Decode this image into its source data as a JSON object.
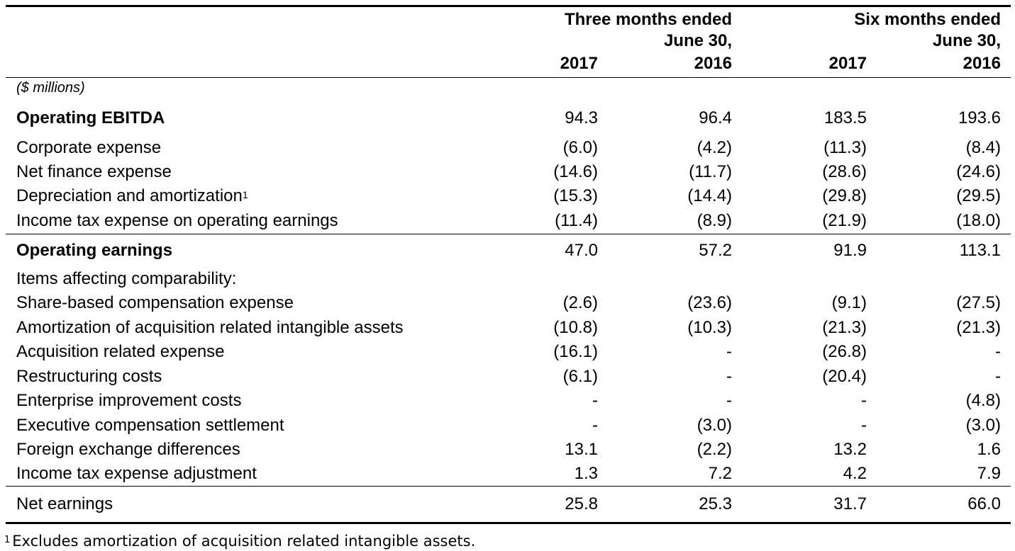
{
  "header": {
    "group1": [
      "Three months ended",
      "June 30,"
    ],
    "group2": [
      "Six months ended",
      "June 30,"
    ],
    "years": [
      "2017",
      "2016",
      "2017",
      "2016"
    ]
  },
  "units": "($ millions)",
  "rows": [
    {
      "label": "Operating EBITDA",
      "values": [
        "94.3",
        "96.4",
        "183.5",
        "193.6"
      ],
      "bold": true
    },
    {
      "label": "Corporate expense",
      "values": [
        "(6.0)",
        "(4.2)",
        "(11.3)",
        "(8.4)"
      ]
    },
    {
      "label": "Net finance expense",
      "values": [
        "(14.6)",
        "(11.7)",
        "(28.6)",
        "(24.6)"
      ]
    },
    {
      "label": "Depreciation and amortization",
      "footnote_marker": "1",
      "values": [
        "(15.3)",
        "(14.4)",
        "(29.8)",
        "(29.5)"
      ]
    },
    {
      "label": "Income tax expense on operating earnings",
      "values": [
        "(11.4)",
        "(8.9)",
        "(21.9)",
        "(18.0)"
      ]
    },
    {
      "label": "Operating earnings",
      "values": [
        "47.0",
        "57.2",
        "91.9",
        "113.1"
      ],
      "bold": true
    },
    {
      "label": "Items affecting comparability:",
      "values": [
        "",
        "",
        "",
        ""
      ]
    },
    {
      "label": "Share-based compensation expense",
      "values": [
        "(2.6)",
        "(23.6)",
        "(9.1)",
        "(27.5)"
      ]
    },
    {
      "label": "Amortization of acquisition related intangible assets",
      "values": [
        "(10.8)",
        "(10.3)",
        "(21.3)",
        "(21.3)"
      ]
    },
    {
      "label": "Acquisition related expense",
      "values": [
        "(16.1)",
        "-",
        "(26.8)",
        "-"
      ]
    },
    {
      "label": "Restructuring costs",
      "values": [
        "(6.1)",
        "-",
        "(20.4)",
        "-"
      ]
    },
    {
      "label": "Enterprise improvement costs",
      "values": [
        "-",
        "-",
        "-",
        "(4.8)"
      ]
    },
    {
      "label": "Executive compensation settlement",
      "values": [
        "-",
        "(3.0)",
        "-",
        "(3.0)"
      ]
    },
    {
      "label": "Foreign exchange differences",
      "values": [
        "13.1",
        "(2.2)",
        "13.2",
        "1.6"
      ]
    },
    {
      "label": "Income tax expense adjustment",
      "values": [
        "1.3",
        "7.2",
        "4.2",
        "7.9"
      ]
    },
    {
      "label": "Net earnings",
      "values": [
        "25.8",
        "25.3",
        "31.7",
        "66.0"
      ]
    }
  ],
  "footnote": {
    "marker": "1",
    "text": "Excludes amortization of acquisition related intangible assets."
  }
}
